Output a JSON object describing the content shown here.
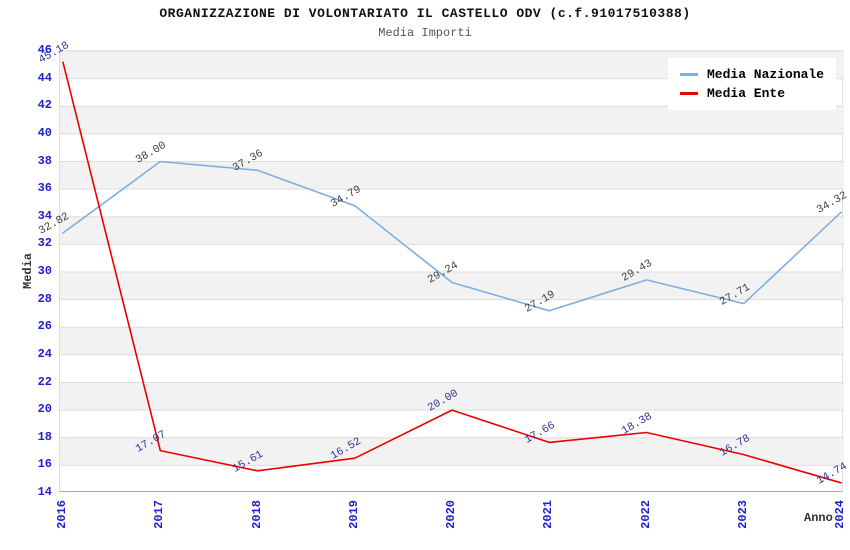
{
  "header": {
    "title": "ORGANIZZAZIONE DI VOLONTARIATO IL CASTELLO ODV (c.f.91017510388)",
    "subtitle": "Media Importi"
  },
  "chart_data": {
    "type": "line",
    "x_categories": [
      "2016",
      "2017",
      "2018",
      "2019",
      "2020",
      "2021",
      "2022",
      "2023",
      "2024"
    ],
    "series": [
      {
        "name": "Media Nazionale",
        "color": "#7DAFE1",
        "label_color": "#3F3F3F",
        "values": [
          32.82,
          38.0,
          37.36,
          34.79,
          29.24,
          27.19,
          29.43,
          27.71,
          34.32
        ]
      },
      {
        "name": "Media Ente",
        "color": "#EE0000",
        "label_color": "#333399",
        "values": [
          45.18,
          17.07,
          15.61,
          16.52,
          20.0,
          17.66,
          18.38,
          16.78,
          14.74
        ]
      }
    ],
    "xlabel": "Anno",
    "ylabel": "Media",
    "ylim": [
      14,
      46
    ],
    "ytick_step": 2,
    "yticks": [
      14,
      16,
      18,
      20,
      22,
      24,
      26,
      28,
      30,
      32,
      34,
      36,
      38,
      40,
      42,
      44,
      46
    ],
    "grid": "horizontal-bands",
    "legend_position": "top-right",
    "colors": {
      "tick_label": "#2020CC",
      "band_fill": "#F2F2F2",
      "gridline": "#DDDDDD",
      "axis_line": "#AAAAAA",
      "title": "#111111",
      "subtitle": "#555555",
      "axis_label": "#333333"
    }
  }
}
